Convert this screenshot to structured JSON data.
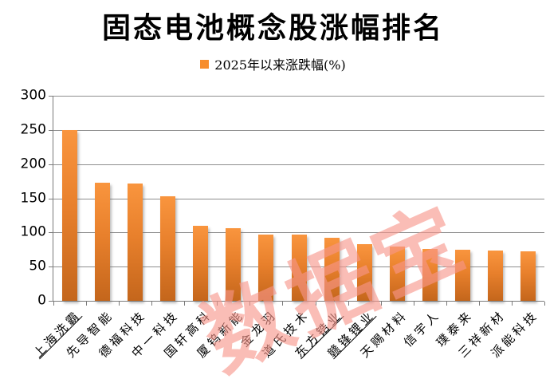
{
  "title": "固态电池概念股涨幅排名",
  "legend": {
    "label": "2025年以来涨跌幅(%)",
    "swatch_color": "#F78D2D"
  },
  "watermark": {
    "text": "数据宝",
    "color": "#F8968B"
  },
  "chart_data": {
    "type": "bar",
    "title": "固态电池概念股涨幅排名",
    "legend_entries": [
      "2025年以来涨跌幅(%)"
    ],
    "legend_position": "top",
    "categories": [
      "上海洗霸",
      "先导智能",
      "德福科技",
      "中一科技",
      "国轩高科",
      "厦钨新能",
      "金龙羽",
      "道氏技术",
      "东方锆业",
      "赣锋锂业",
      "天赐材料",
      "信宇人",
      "璞泰来",
      "三祥新材",
      "派能科技"
    ],
    "underlined_categories": [
      "上海洗霸",
      "东方锆业",
      "赣锋锂业"
    ],
    "values": [
      250,
      173,
      172,
      153,
      110,
      106,
      97,
      97,
      92,
      83,
      79,
      76,
      75,
      73,
      72
    ],
    "xlabel": "",
    "ylabel": "",
    "ylim": [
      0,
      300
    ],
    "yticks": [
      300,
      250,
      200,
      150,
      100,
      50,
      0
    ],
    "grid": "horizontal",
    "bar_gradient_top": "#F9953E",
    "bar_gradient_bottom": "#C4661C"
  },
  "colors": {
    "background": "#FFFFFF",
    "gridline": "#8E8E8E",
    "axis": "#7A7A7A",
    "text": "#000000"
  }
}
